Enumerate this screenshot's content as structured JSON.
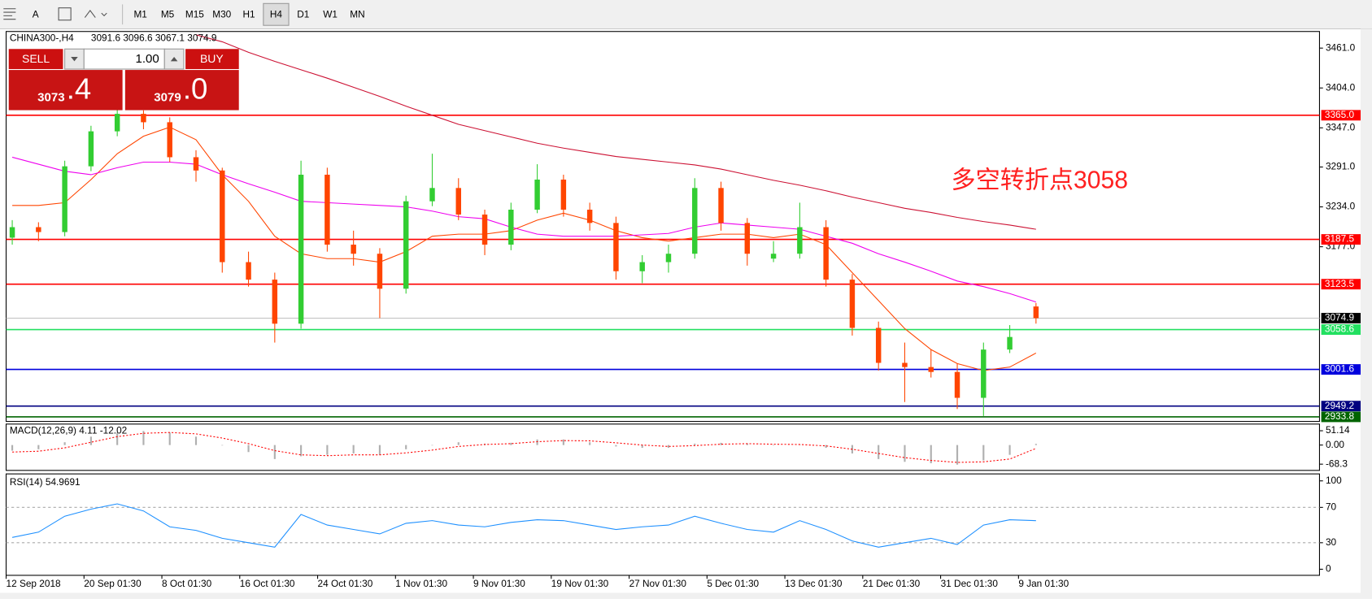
{
  "toolbar": {
    "timeframes": [
      "M1",
      "M5",
      "M15",
      "M30",
      "H1",
      "H4",
      "D1",
      "W1",
      "MN"
    ],
    "active": "H4"
  },
  "trade_panel": {
    "sell": "SELL",
    "buy": "BUY",
    "lot": "1.00",
    "bid_main": "3073",
    "bid_frac": ".4",
    "ask_main": "3079",
    "ask_frac": ".0"
  },
  "chart_data": [
    {
      "type": "candlestick",
      "title": "CHINA300-,H4",
      "subtitle": "3091.6 3096.6 3067.1 3074.9",
      "annotation": "多空转折点3058",
      "up_color": "#32cd32",
      "down_color": "#ff4500",
      "ylim": [
        2927.25,
        3484.75
      ],
      "yticks": [
        {
          "value": 3461,
          "label": "3461.0"
        },
        {
          "value": 3404,
          "label": "3404.0"
        },
        {
          "value": 3347,
          "label": "3347.0"
        },
        {
          "value": 3291,
          "label": "3291.0"
        },
        {
          "value": 3234,
          "label": "3234.0"
        },
        {
          "value": 3177,
          "label": "3177.0"
        }
      ],
      "ohlc": [
        [
          3190,
          3215,
          3180,
          3205
        ],
        [
          3205,
          3212,
          3185,
          3198
        ],
        [
          3198,
          3300,
          3192,
          3292
        ],
        [
          3292,
          3350,
          3285,
          3342
        ],
        [
          3342,
          3375,
          3335,
          3367
        ],
        [
          3367,
          3372,
          3345,
          3355
        ],
        [
          3355,
          3362,
          3298,
          3305
        ],
        [
          3305,
          3315,
          3270,
          3286
        ],
        [
          3286,
          3290,
          3140,
          3155
        ],
        [
          3155,
          3170,
          3120,
          3130
        ],
        [
          3130,
          3140,
          3040,
          3067
        ],
        [
          3067,
          3300,
          3060,
          3280
        ],
        [
          3280,
          3290,
          3170,
          3180
        ],
        [
          3180,
          3200,
          3150,
          3167
        ],
        [
          3167,
          3175,
          3075,
          3117
        ],
        [
          3117,
          3250,
          3110,
          3242
        ],
        [
          3242,
          3310,
          3235,
          3261
        ],
        [
          3261,
          3275,
          3215,
          3223
        ],
        [
          3223,
          3230,
          3165,
          3180
        ],
        [
          3180,
          3240,
          3172,
          3230
        ],
        [
          3230,
          3295,
          3225,
          3273
        ],
        [
          3273,
          3280,
          3220,
          3230
        ],
        [
          3230,
          3240,
          3200,
          3211
        ],
        [
          3211,
          3220,
          3130,
          3142
        ],
        [
          3142,
          3165,
          3125,
          3155
        ],
        [
          3155,
          3180,
          3140,
          3167
        ],
        [
          3167,
          3275,
          3160,
          3261
        ],
        [
          3261,
          3270,
          3200,
          3211
        ],
        [
          3211,
          3218,
          3150,
          3167
        ],
        [
          3160,
          3185,
          3155,
          3167
        ],
        [
          3167,
          3240,
          3160,
          3205
        ],
        [
          3205,
          3215,
          3120,
          3130
        ],
        [
          3130,
          3138,
          3050,
          3061
        ],
        [
          3061,
          3070,
          3000,
          3011
        ],
        [
          3011,
          3040,
          2955,
          3005
        ],
        [
          3005,
          3030,
          2990,
          2998
        ],
        [
          2998,
          3010,
          2945,
          2961
        ],
        [
          2961,
          3040,
          2935,
          3030
        ],
        [
          3030,
          3065,
          3025,
          3048
        ],
        [
          3091.6,
          3096.6,
          3067.1,
          3074.9
        ]
      ],
      "series": [
        {
          "color": "#ff4500",
          "values": [
            3236,
            3236,
            3240,
            3273,
            3310,
            3335,
            3348,
            3330,
            3280,
            3242,
            3192,
            3167,
            3160,
            3160,
            3155,
            3170,
            3192,
            3195,
            3195,
            3200,
            3215,
            3225,
            3215,
            3200,
            3190,
            3185,
            3190,
            3195,
            3195,
            3190,
            3195,
            3180,
            3140,
            3100,
            3060,
            3030,
            3010,
            3000,
            3005,
            3025
          ]
        },
        {
          "color": "#ee00ee",
          "values": [
            3305,
            3295,
            3285,
            3280,
            3290,
            3298,
            3298,
            3295,
            3280,
            3267,
            3255,
            3242,
            3240,
            3238,
            3236,
            3234,
            3228,
            3220,
            3217,
            3205,
            3195,
            3192,
            3192,
            3192,
            3194,
            3196,
            3205,
            3211,
            3208,
            3205,
            3202,
            3192,
            3182,
            3167,
            3155,
            3142,
            3128,
            3120,
            3110,
            3098
          ]
        },
        {
          "color": "#cc1133",
          "values": [
            null,
            null,
            null,
            null,
            null,
            null,
            null,
            3480,
            3470,
            3455,
            3442,
            3430,
            3418,
            3405,
            3392,
            3378,
            3365,
            3352,
            3343,
            3334,
            3325,
            3318,
            3312,
            3306,
            3302,
            3298,
            3294,
            3288,
            3280,
            3272,
            3265,
            3257,
            3248,
            3240,
            3232,
            3226,
            3219,
            3213,
            3208,
            3202
          ]
        }
      ],
      "levels": [
        {
          "value": 3365.0,
          "label": "3365.0",
          "color": "#ff0000"
        },
        {
          "value": 3187.5,
          "label": "3187.5",
          "color": "#ff0000"
        },
        {
          "value": 3123.5,
          "label": "3123.5",
          "color": "#ff0000"
        },
        {
          "value": 3074.9,
          "label": "3074.9",
          "color": "#000000"
        },
        {
          "value": 3058.6,
          "label": "3058.6",
          "color": "#22e060"
        },
        {
          "value": 3001.6,
          "label": "3001.6",
          "color": "#0000dd"
        },
        {
          "value": 2949.2,
          "label": "2949.2",
          "color": "#000080"
        },
        {
          "value": 2933.8,
          "label": "2933.8",
          "color": "#006400"
        }
      ]
    },
    {
      "type": "macd",
      "title": "MACD(12,26,9) 4.11 -12.02",
      "ylim": [
        -90.6,
        75
      ],
      "yticks": [
        51.14,
        {
          "value": 0,
          "label": "0.00"
        },
        -68.3
      ],
      "series": [
        {
          "style": "histogram",
          "color": "#b0b0b0",
          "values": [
            -20,
            -15,
            10,
            30,
            45,
            50,
            45,
            30,
            0,
            -25,
            -50,
            -40,
            -35,
            -30,
            -35,
            -15,
            0,
            10,
            5,
            8,
            20,
            20,
            10,
            -5,
            -10,
            -10,
            5,
            8,
            5,
            0,
            2,
            -10,
            -30,
            -50,
            -60,
            -65,
            -70,
            -55,
            -35,
            4.11
          ]
        },
        {
          "style": "dotted",
          "color": "#ff0000",
          "values": [
            -25,
            -22,
            -10,
            10,
            30,
            42,
            45,
            40,
            25,
            5,
            -20,
            -35,
            -38,
            -35,
            -35,
            -28,
            -18,
            -5,
            2,
            5,
            12,
            16,
            15,
            8,
            0,
            -5,
            -2,
            3,
            5,
            3,
            2,
            -3,
            -15,
            -30,
            -45,
            -55,
            -62,
            -60,
            -50,
            -12.02
          ]
        }
      ]
    },
    {
      "type": "line",
      "title": "RSI(14) 54.9691",
      "ylim": [
        -6.9,
        107.9
      ],
      "yticks": [
        100,
        70,
        30,
        0
      ],
      "dashed_lines": [
        70,
        30
      ],
      "color": "#1e90ff",
      "values": [
        36,
        42,
        60,
        68,
        74,
        66,
        48,
        44,
        35,
        30,
        25,
        62,
        50,
        45,
        40,
        52,
        55,
        50,
        48,
        53,
        56,
        55,
        50,
        45,
        48,
        50,
        60,
        52,
        45,
        42,
        55,
        45,
        32,
        25,
        30,
        35,
        28,
        50,
        56,
        54.9691
      ]
    }
  ],
  "time_axis": {
    "labels": [
      "12 Sep 2018",
      "20 Sep 01:30",
      "8 Oct 01:30",
      "16 Oct 01:30",
      "24 Oct 01:30",
      "1 Nov 01:30",
      "9 Nov 01:30",
      "19 Nov 01:30",
      "27 Nov 01:30",
      "5 Dec 01:30",
      "13 Dec 01:30",
      "21 Dec 01:30",
      "31 Dec 01:30",
      "9 Jan 01:30"
    ]
  }
}
